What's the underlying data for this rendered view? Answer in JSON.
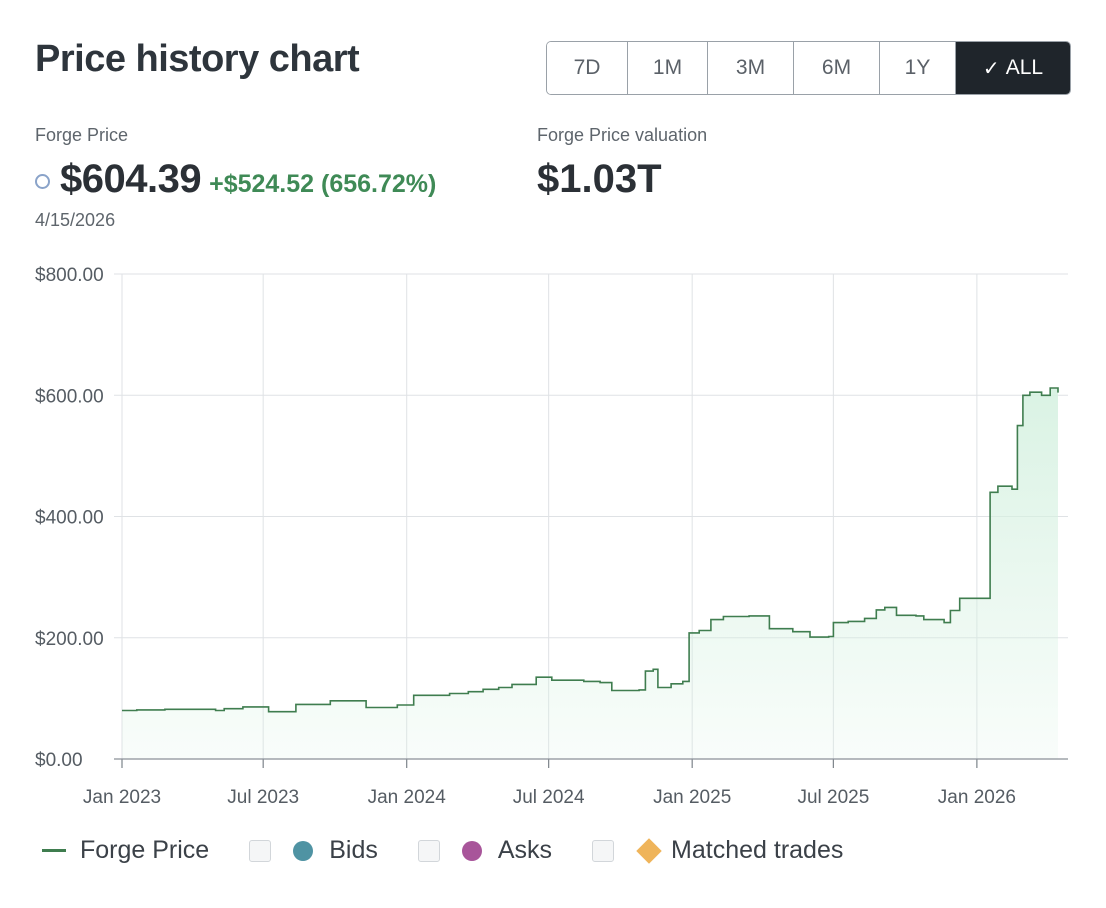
{
  "header": {
    "title": "Price history chart"
  },
  "range_buttons": [
    {
      "label": "7D",
      "active": false
    },
    {
      "label": "1M",
      "active": false
    },
    {
      "label": "3M",
      "active": false
    },
    {
      "label": "6M",
      "active": false
    },
    {
      "label": "1Y",
      "active": false
    },
    {
      "label": "ALL",
      "active": true
    }
  ],
  "summary": {
    "price_label": "Forge Price",
    "price": "$604.39",
    "change": "+$524.52 (656.72%)",
    "date": "4/15/2026",
    "valuation_label": "Forge Price valuation",
    "valuation": "$1.03T"
  },
  "legend": {
    "forge_price": "Forge Price",
    "bids": "Bids",
    "asks": "Asks",
    "matched": "Matched trades"
  },
  "colors": {
    "line": "#3f7d4f",
    "fill": "#d6f1e1",
    "bids": "#4f93a3",
    "asks": "#a8559a",
    "matched": "#efb45a",
    "active_button": "#1f252b"
  },
  "chart_data": {
    "type": "area",
    "title": "",
    "series": [
      {
        "name": "Forge Price",
        "points": [
          [
            "2023-01-01",
            80
          ],
          [
            "2023-01-20",
            81
          ],
          [
            "2023-02-25",
            82
          ],
          [
            "2023-04-10",
            82
          ],
          [
            "2023-05-01",
            80
          ],
          [
            "2023-05-12",
            83
          ],
          [
            "2023-06-05",
            86
          ],
          [
            "2023-07-08",
            78
          ],
          [
            "2023-08-12",
            90
          ],
          [
            "2023-09-25",
            96
          ],
          [
            "2023-11-10",
            85
          ],
          [
            "2023-12-20",
            89
          ],
          [
            "2024-01-10",
            105
          ],
          [
            "2024-02-25",
            108
          ],
          [
            "2024-03-20",
            111
          ],
          [
            "2024-04-08",
            115
          ],
          [
            "2024-04-28",
            118
          ],
          [
            "2024-05-15",
            123
          ],
          [
            "2024-06-15",
            135
          ],
          [
            "2024-07-05",
            130
          ],
          [
            "2024-08-15",
            128
          ],
          [
            "2024-09-05",
            126
          ],
          [
            "2024-09-20",
            113
          ],
          [
            "2024-10-25",
            114
          ],
          [
            "2024-11-02",
            145
          ],
          [
            "2024-11-12",
            148
          ],
          [
            "2024-11-18",
            118
          ],
          [
            "2024-12-05",
            124
          ],
          [
            "2024-12-20",
            128
          ],
          [
            "2024-12-28",
            208
          ],
          [
            "2025-01-10",
            212
          ],
          [
            "2025-01-25",
            230
          ],
          [
            "2025-02-10",
            235
          ],
          [
            "2025-03-15",
            236
          ],
          [
            "2025-04-10",
            215
          ],
          [
            "2025-05-10",
            210
          ],
          [
            "2025-06-01",
            201
          ],
          [
            "2025-06-25",
            202
          ],
          [
            "2025-07-01",
            225
          ],
          [
            "2025-07-20",
            227
          ],
          [
            "2025-08-10",
            232
          ],
          [
            "2025-08-25",
            246
          ],
          [
            "2025-09-05",
            250
          ],
          [
            "2025-09-20",
            237
          ],
          [
            "2025-10-15",
            236
          ],
          [
            "2025-10-25",
            230
          ],
          [
            "2025-11-20",
            225
          ],
          [
            "2025-11-28",
            245
          ],
          [
            "2025-12-10",
            265
          ],
          [
            "2026-01-12",
            265
          ],
          [
            "2026-01-18",
            440
          ],
          [
            "2026-01-28",
            450
          ],
          [
            "2026-02-15",
            445
          ],
          [
            "2026-02-22",
            550
          ],
          [
            "2026-03-01",
            600
          ],
          [
            "2026-03-10",
            605
          ],
          [
            "2026-03-25",
            600
          ],
          [
            "2026-04-05",
            612
          ],
          [
            "2026-04-15",
            604.39
          ]
        ]
      }
    ],
    "x_ticks": [
      "Jan 2023",
      "Jul 2023",
      "Jan 2024",
      "Jul 2024",
      "Jan 2025",
      "Jul 2025",
      "Jan 2026"
    ],
    "x_tick_dates": [
      "2023-01-01",
      "2023-07-01",
      "2024-01-01",
      "2024-07-01",
      "2025-01-01",
      "2025-07-01",
      "2026-01-01"
    ],
    "xlim": [
      "2023-01-01",
      "2026-04-15"
    ],
    "y_ticks": [
      "$0.00",
      "$200.00",
      "$400.00",
      "$600.00",
      "$800.00"
    ],
    "y_tick_values": [
      0,
      200,
      400,
      600,
      800
    ],
    "ylim": [
      0,
      800
    ],
    "grid": true,
    "xlabel": "",
    "ylabel": ""
  }
}
